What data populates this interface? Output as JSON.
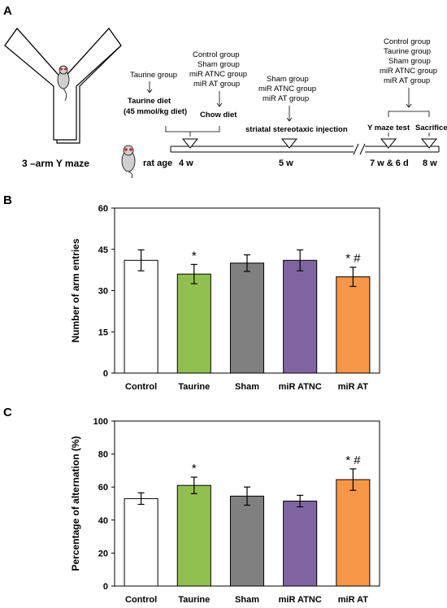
{
  "panel_a": {
    "label": "A",
    "maze_caption": "3 –arm Y maze",
    "rat_age_label": "rat age",
    "ages": [
      "4 w",
      "5 w",
      "7 w & 6 d",
      "8 w"
    ],
    "groups_taurine": "Taurine group",
    "groups_chow": [
      "Control group",
      "Sham group",
      "miR ATNC group",
      "miR AT group"
    ],
    "taurine_diet": [
      "Taurine diet",
      "(45 mmol/kg diet)"
    ],
    "chow_diet": "Chow diet",
    "groups_injection": [
      "Sham group",
      "miR ATNC group",
      "miR AT group"
    ],
    "injection_label": "striatal stereotaxic injection",
    "groups_test": [
      "Control group",
      "Taurine group",
      "Sham group",
      "miR ATNC group",
      "miR AT group"
    ],
    "ymaze_test_label": "Y maze test",
    "sacrifice_label": "Sacrifice"
  },
  "colors": {
    "control": "#ffffff",
    "taurine": "#92c050",
    "sham": "#808080",
    "mir_atnc": "#8064a2",
    "mir_at": "#f79646"
  },
  "chart_data": [
    {
      "panel": "B",
      "type": "bar",
      "ylabel": "Number of arm entries",
      "ylim": [
        0,
        60
      ],
      "yticks": [
        0,
        15,
        30,
        45,
        60
      ],
      "categories": [
        "Control",
        "Taurine",
        "Sham",
        "miR ATNC",
        "miR AT"
      ],
      "values": [
        41,
        36,
        40,
        41,
        35
      ],
      "errors": [
        3.8,
        3.5,
        3.0,
        3.8,
        3.5
      ],
      "annotations": [
        "",
        "*",
        "",
        "",
        "* #"
      ]
    },
    {
      "panel": "C",
      "type": "bar",
      "ylabel": "Percentage of alternation (%)",
      "ylim": [
        0,
        100
      ],
      "yticks": [
        0,
        20,
        40,
        60,
        80,
        100
      ],
      "categories": [
        "Control",
        "Taurine",
        "Sham",
        "miR ATNC",
        "miR AT"
      ],
      "values": [
        53,
        61,
        54.5,
        51.5,
        64.5
      ],
      "errors": [
        3.5,
        5.0,
        5.5,
        3.5,
        6.5
      ],
      "annotations": [
        "",
        "*",
        "",
        "",
        "* #"
      ]
    }
  ]
}
